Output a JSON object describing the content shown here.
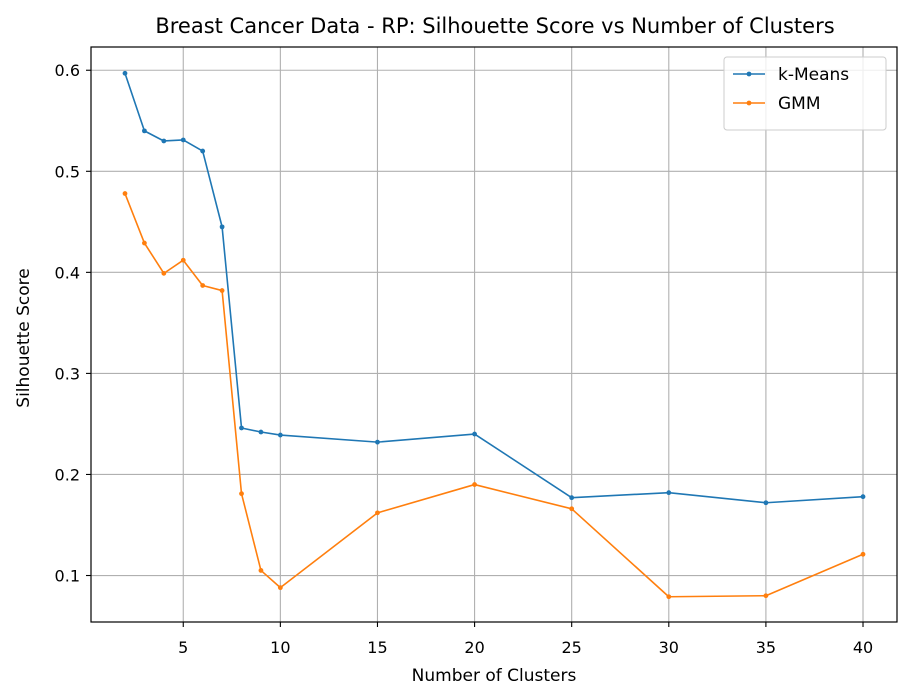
{
  "chart_data": {
    "type": "line",
    "title": "Breast Cancer Data - RP: Silhouette Score vs Number of Clusters",
    "xlabel": "Number of Clusters",
    "ylabel": "Silhouette Score",
    "x": [
      2,
      3,
      4,
      5,
      6,
      7,
      8,
      9,
      10,
      15,
      20,
      25,
      30,
      35,
      40
    ],
    "xlim": [
      0.25,
      41.75
    ],
    "ylim": [
      0.054,
      0.623
    ],
    "xticks": [
      5,
      10,
      15,
      20,
      25,
      30,
      35,
      40
    ],
    "yticks": [
      0.1,
      0.2,
      0.3,
      0.4,
      0.5,
      0.6
    ],
    "xtick_labels": [
      "5",
      "10",
      "15",
      "20",
      "25",
      "30",
      "35",
      "40"
    ],
    "ytick_labels": [
      "0.1",
      "0.2",
      "0.3",
      "0.4",
      "0.5",
      "0.6"
    ],
    "grid": true,
    "legend_position": "top-right",
    "series": [
      {
        "name": "k-Means",
        "color": "#1f77b4",
        "values": [
          0.597,
          0.54,
          0.53,
          0.531,
          0.52,
          0.445,
          0.246,
          0.242,
          0.239,
          0.232,
          0.24,
          0.177,
          0.182,
          0.172,
          0.178
        ]
      },
      {
        "name": "GMM",
        "color": "#ff7f0e",
        "values": [
          0.478,
          0.429,
          0.399,
          0.412,
          0.387,
          0.382,
          0.181,
          0.105,
          0.088,
          0.162,
          0.19,
          0.166,
          0.079,
          0.08,
          0.121
        ]
      }
    ]
  }
}
